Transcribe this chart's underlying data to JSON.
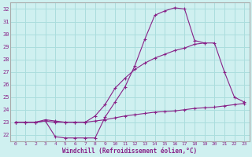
{
  "xlabel": "Windchill (Refroidissement éolien,°C)",
  "background_color": "#cff0f0",
  "grid_color": "#aadddd",
  "line_color": "#882288",
  "x_ticks": [
    0,
    1,
    2,
    3,
    4,
    5,
    6,
    7,
    8,
    9,
    10,
    11,
    12,
    13,
    14,
    15,
    16,
    17,
    18,
    19,
    20,
    21,
    22,
    23
  ],
  "y_ticks": [
    22,
    23,
    24,
    25,
    26,
    27,
    28,
    29,
    30,
    31,
    32
  ],
  "ylim": [
    21.5,
    32.5
  ],
  "xlim": [
    -0.5,
    23.5
  ],
  "line1": [
    23.0,
    23.0,
    23.0,
    23.1,
    21.85,
    21.75,
    21.75,
    21.75,
    21.75,
    23.4,
    24.6,
    25.8,
    27.5,
    29.6,
    31.5,
    31.85,
    32.1,
    32.0,
    29.5,
    29.3,
    null,
    null,
    null,
    null
  ],
  "line2": [
    23.0,
    23.0,
    23.0,
    23.2,
    23.1,
    23.0,
    23.0,
    23.0,
    23.5,
    24.4,
    25.7,
    26.5,
    27.2,
    27.7,
    28.1,
    28.4,
    28.7,
    28.9,
    29.2,
    29.3,
    29.3,
    27.0,
    25.0,
    24.6
  ],
  "line3": [
    23.0,
    23.0,
    23.0,
    23.1,
    23.0,
    23.0,
    23.0,
    23.0,
    23.1,
    23.2,
    23.35,
    23.5,
    23.6,
    23.7,
    23.8,
    23.85,
    23.9,
    24.0,
    24.1,
    24.15,
    24.2,
    24.3,
    24.4,
    24.5
  ]
}
